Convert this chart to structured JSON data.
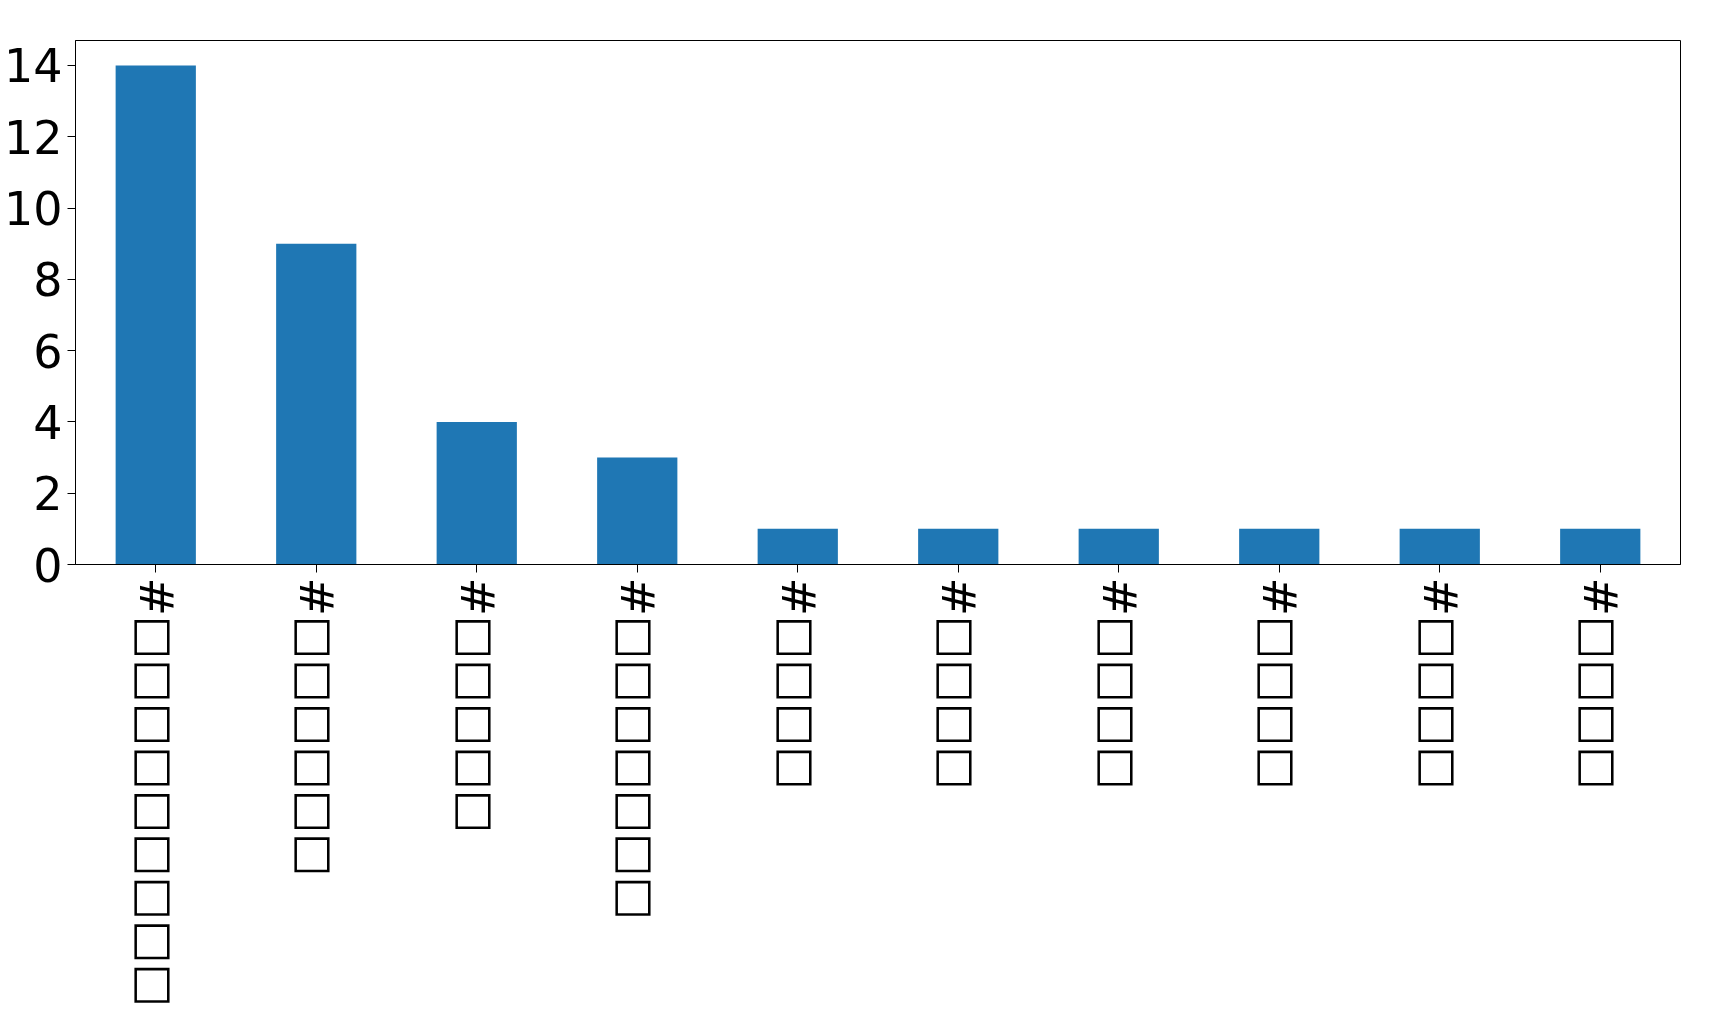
{
  "chart_data": {
    "type": "bar",
    "categories": [
      "#□□□□□□□□□",
      "#□□□□□□",
      "#□□□□□",
      "#□□□□□□□",
      "#□□□□",
      "#□□□□",
      "#□□□□",
      "#□□□□",
      "#□□□□",
      "#□□□□"
    ],
    "values": [
      14,
      9,
      4,
      3,
      1,
      1,
      1,
      1,
      1,
      1
    ],
    "color": "#1f77b4",
    "ylim": [
      0,
      14.7
    ],
    "yticks": [
      0,
      2,
      4,
      6,
      8,
      10,
      12,
      14
    ],
    "grid": false
  }
}
